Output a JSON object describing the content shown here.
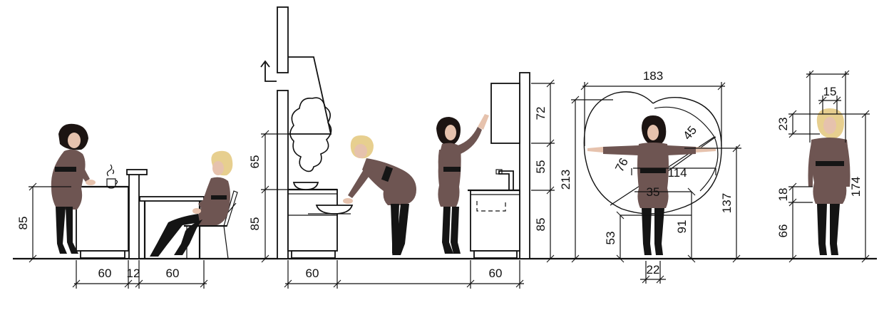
{
  "colors": {
    "line": "#111111",
    "dress": "#6e5552",
    "skin": "#e6c2ad",
    "hair_dark": "#1c1412",
    "hair_blond": "#e7cf8f",
    "background": "#ffffff"
  },
  "panels": {
    "counter_dining": {
      "counter_height": "85",
      "depth_counter": "60",
      "gap": "12",
      "depth_table": "60"
    },
    "cooktop": {
      "hood_clearance": "65",
      "counter_height": "85",
      "depth": "60"
    },
    "wall_cabinet": {
      "cabinet_height": "72",
      "gap": "55",
      "counter_height": "85",
      "depth": "60"
    },
    "reach": {
      "arm_span": "183",
      "height_reach": "213",
      "diagonal_reach": "76",
      "forearm_reach": "45",
      "shoulder_width": "114",
      "hip_width": "35",
      "knee_height": "53",
      "hand_height": "91",
      "shoulder_height": "137",
      "feet_width": "22"
    },
    "standing": {
      "head_width": "15",
      "head_height": "23",
      "height": "174",
      "hand_band": "18",
      "knee_height": "66"
    }
  }
}
